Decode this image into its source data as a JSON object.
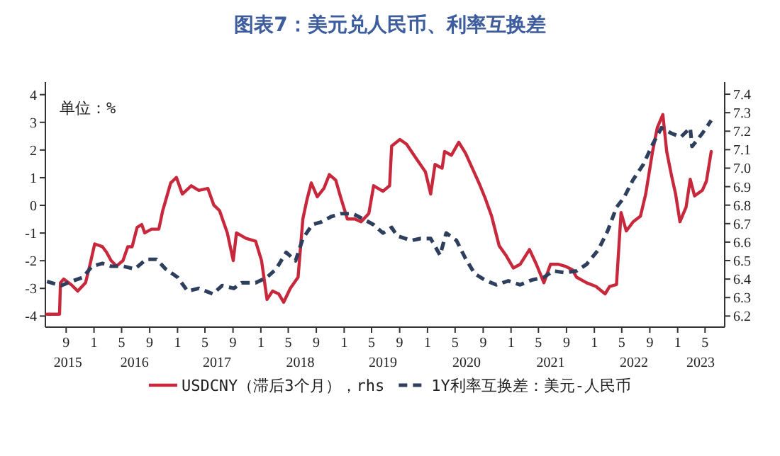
{
  "chart_data": {
    "type": "line",
    "title": "图表7：美元兑人民币、利率互换差",
    "annotations": [
      "单位：%"
    ],
    "xlim": [
      "2015-06-02",
      "2023-07-26"
    ],
    "xticks": [
      {
        "value": "2015-09",
        "label": "9"
      },
      {
        "value": "2016-01",
        "label": "1"
      },
      {
        "value": "2016-05",
        "label": "5"
      },
      {
        "value": "2016-09",
        "label": "9"
      },
      {
        "value": "2017-01",
        "label": "1"
      },
      {
        "value": "2017-05",
        "label": "5"
      },
      {
        "value": "2017-09",
        "label": "9"
      },
      {
        "value": "2018-01",
        "label": "1"
      },
      {
        "value": "2018-05",
        "label": "5"
      },
      {
        "value": "2018-09",
        "label": "9"
      },
      {
        "value": "2019-01",
        "label": "1"
      },
      {
        "value": "2019-05",
        "label": "5"
      },
      {
        "value": "2019-09",
        "label": "9"
      },
      {
        "value": "2020-01",
        "label": "1"
      },
      {
        "value": "2020-05",
        "label": "5"
      },
      {
        "value": "2020-09",
        "label": "9"
      },
      {
        "value": "2021-01",
        "label": "1"
      },
      {
        "value": "2021-05",
        "label": "5"
      },
      {
        "value": "2021-09",
        "label": "9"
      },
      {
        "value": "2022-01",
        "label": "1"
      },
      {
        "value": "2022-05",
        "label": "5"
      },
      {
        "value": "2022-09",
        "label": "9"
      },
      {
        "value": "2023-01",
        "label": "1"
      },
      {
        "value": "2023-05",
        "label": "5"
      }
    ],
    "x2lim": [
      "2015-06-02",
      "2023-07-26"
    ],
    "x2ticks": [
      {
        "value": "2015-09-09",
        "label": "2015"
      },
      {
        "value": "2016-06-27",
        "label": "2016"
      },
      {
        "value": "2017-06-23",
        "label": "2017"
      },
      {
        "value": "2018-06-23",
        "label": "2018"
      },
      {
        "value": "2019-06-20",
        "label": "2019"
      },
      {
        "value": "2020-06-20",
        "label": "2020"
      },
      {
        "value": "2021-06-23",
        "label": "2021"
      },
      {
        "value": "2022-06-23",
        "label": "2022"
      },
      {
        "value": "2023-04-11",
        "label": "2023"
      }
    ],
    "ylim": [
      -4.4,
      4.35
    ],
    "yticks": [
      -4,
      -3,
      -2,
      -1,
      0,
      1,
      2,
      3,
      4
    ],
    "y2lim": [
      6.14,
      7.45
    ],
    "y2ticks": [
      6.2,
      6.3,
      6.4,
      6.5,
      6.6,
      6.7,
      6.8,
      6.9,
      {
        "value": 7,
        "label": "7.0"
      },
      7.1,
      7.2,
      7.3,
      7.4
    ],
    "legend": "bottom",
    "series": [
      {
        "name": "USDCNY（滞后3个月），rhs",
        "color": "#c8283c",
        "axis": "y2",
        "line_style": "solid",
        "x": [
          "2015-06-09",
          "2015-08-03",
          "2015-08-07",
          "2015-08-21",
          "2015-09-23",
          "2015-10-22",
          "2015-11-25",
          "2015-12-13",
          "2016-01-04",
          "2016-02-07",
          "2016-02-25",
          "2016-03-16",
          "2016-04-08",
          "2016-05-07",
          "2016-05-28",
          "2016-06-16",
          "2016-07-08",
          "2016-07-28",
          "2016-08-10",
          "2016-09-09",
          "2016-10-11",
          "2016-10-28",
          "2016-12-02",
          "2016-12-27",
          "2017-01-22",
          "2017-03-02",
          "2017-04-04",
          "2017-05-14",
          "2017-06-09",
          "2017-07-04",
          "2017-08-07",
          "2017-09-02",
          "2017-09-16",
          "2017-10-28",
          "2017-12-09",
          "2018-01-04",
          "2018-01-28",
          "2018-02-21",
          "2018-03-20",
          "2018-04-11",
          "2018-05-10",
          "2018-06-13",
          "2018-07-04",
          "2018-07-22",
          "2018-08-10",
          "2018-09-05",
          "2018-10-04",
          "2018-10-28",
          "2018-11-25",
          "2018-12-16",
          "2019-01-15",
          "2019-02-17",
          "2019-03-16",
          "2019-04-19",
          "2019-05-10",
          "2019-06-20",
          "2019-07-19",
          "2019-07-28",
          "2019-09-02",
          "2019-10-01",
          "2019-11-14",
          "2019-12-23",
          "2020-01-15",
          "2020-02-03",
          "2020-03-05",
          "2020-03-16",
          "2020-04-15",
          "2020-05-17",
          "2020-06-16",
          "2020-07-19",
          "2020-08-17",
          "2020-09-09",
          "2020-10-08",
          "2020-11-10",
          "2020-12-09",
          "2021-01-11",
          "2021-02-10",
          "2021-03-23",
          "2021-04-22",
          "2021-05-25",
          "2021-06-23",
          "2021-07-26",
          "2021-08-25",
          "2021-09-27",
          "2021-10-15",
          "2021-11-28",
          "2022-01-08",
          "2022-02-17",
          "2022-03-09",
          "2022-04-08",
          "2022-04-28",
          "2022-05-21",
          "2022-06-20",
          "2022-07-22",
          "2022-08-14",
          "2022-09-13",
          "2022-10-04",
          "2022-10-28",
          "2022-11-14",
          "2022-12-05",
          "2022-12-23",
          "2023-01-11",
          "2023-02-07",
          "2023-02-25",
          "2023-03-16",
          "2023-04-19",
          "2023-05-07",
          "2023-05-28"
        ],
        "values": [
          6.21,
          6.21,
          6.38,
          6.4,
          6.37,
          6.335,
          6.38,
          6.47,
          6.59,
          6.575,
          6.545,
          6.5,
          6.47,
          6.5,
          6.575,
          6.575,
          6.68,
          6.695,
          6.65,
          6.67,
          6.67,
          6.77,
          6.92,
          6.95,
          6.86,
          6.905,
          6.88,
          6.89,
          6.8,
          6.77,
          6.65,
          6.5,
          6.65,
          6.62,
          6.605,
          6.5,
          6.29,
          6.335,
          6.32,
          6.275,
          6.35,
          6.41,
          6.725,
          6.83,
          6.92,
          6.845,
          6.89,
          6.965,
          6.935,
          6.845,
          6.725,
          6.725,
          6.71,
          6.755,
          6.905,
          6.875,
          6.905,
          7.12,
          7.155,
          7.13,
          7.05,
          6.98,
          6.86,
          7.02,
          7.0,
          7.09,
          7.07,
          7.14,
          7.08,
          6.99,
          6.91,
          6.84,
          6.74,
          6.58,
          6.53,
          6.46,
          6.48,
          6.56,
          6.48,
          6.38,
          6.48,
          6.48,
          6.47,
          6.45,
          6.41,
          6.38,
          6.36,
          6.32,
          6.36,
          6.37,
          6.76,
          6.66,
          6.71,
          6.74,
          6.86,
          7.09,
          7.22,
          7.29,
          7.09,
          6.96,
          6.86,
          6.71,
          6.79,
          6.94,
          6.85,
          6.88,
          6.93,
          7.09
        ]
      },
      {
        "name": "1Y利率互换差：美元-人民币",
        "color": "#2e3f5e",
        "line_style": "dashed",
        "x": [
          "2015-06-09",
          "2015-08-10",
          "2015-09-23",
          "2015-11-14",
          "2015-12-23",
          "2016-02-07",
          "2016-03-16",
          "2016-05-07",
          "2016-06-27",
          "2016-08-17",
          "2016-10-01",
          "2016-11-10",
          "2017-01-01",
          "2017-02-14",
          "2017-04-04",
          "2017-06-05",
          "2017-07-15",
          "2017-09-05",
          "2017-10-08",
          "2017-12-09",
          "2018-01-28",
          "2018-03-09",
          "2018-04-22",
          "2018-06-02",
          "2018-07-04",
          "2018-08-14",
          "2018-09-23",
          "2018-11-07",
          "2018-12-16",
          "2019-02-07",
          "2019-03-27",
          "2019-05-10",
          "2019-06-20",
          "2019-07-28",
          "2019-08-21",
          "2019-10-22",
          "2019-12-02",
          "2020-01-15",
          "2020-02-25",
          "2020-03-23",
          "2020-05-07",
          "2020-06-16",
          "2020-07-26",
          "2020-09-09",
          "2020-10-28",
          "2020-12-20",
          "2021-02-10",
          "2021-04-01",
          "2021-05-25",
          "2021-07-04",
          "2021-08-25",
          "2021-10-15",
          "2021-11-28",
          "2022-01-19",
          "2022-02-28",
          "2022-04-08",
          "2022-05-10",
          "2022-06-20",
          "2022-08-03",
          "2022-09-13",
          "2022-10-22",
          "2022-12-05",
          "2023-01-15",
          "2023-02-25",
          "2023-03-05",
          "2023-04-19",
          "2023-05-28"
        ],
        "values": [
          -2.75,
          -2.9,
          -2.75,
          -2.6,
          -2.2,
          -2.1,
          -2.2,
          -2.2,
          -2.3,
          -1.95,
          -1.95,
          -2.3,
          -2.6,
          -3.1,
          -3.0,
          -3.2,
          -2.9,
          -3.0,
          -2.8,
          -2.8,
          -2.6,
          -2.3,
          -1.7,
          -2.0,
          -1.2,
          -0.7,
          -0.6,
          -0.4,
          -0.3,
          -0.3,
          -0.5,
          -0.7,
          -1.0,
          -0.8,
          -1.1,
          -1.27,
          -1.2,
          -1.2,
          -1.8,
          -1.0,
          -1.27,
          -1.93,
          -2.47,
          -2.7,
          -2.87,
          -2.73,
          -2.87,
          -2.7,
          -2.6,
          -2.37,
          -2.43,
          -2.37,
          -2.13,
          -1.6,
          -0.93,
          -0.07,
          0.27,
          0.93,
          1.47,
          2.2,
          2.8,
          2.6,
          2.47,
          2.8,
          2.13,
          2.6,
          3.07
        ]
      }
    ]
  }
}
